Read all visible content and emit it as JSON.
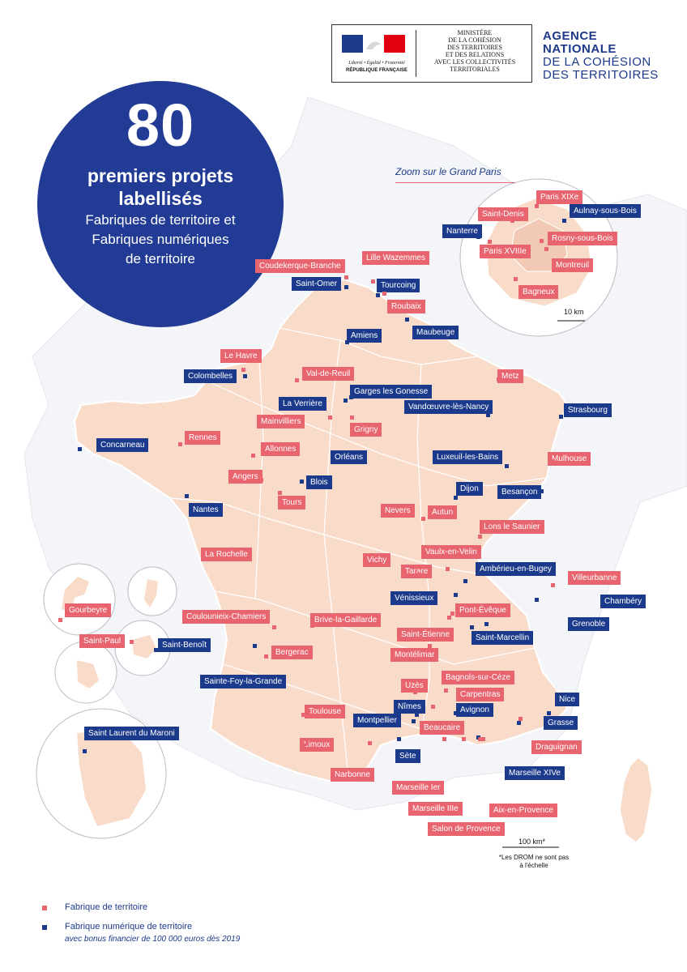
{
  "header": {
    "gov_motto": "Liberté • Égalité • Fraternité",
    "gov_name": "RÉPUBLIQUE FRANÇAISE",
    "ministry_lines": [
      "MINISTÈRE",
      "DE LA COHÉSION",
      "DES TERRITOIRES",
      "ET DES RELATIONS",
      "AVEC LES COLLECTIVITÉS",
      "TERRITORIALES"
    ],
    "agency_lines": [
      "AGENCE",
      "NATIONALE",
      "DE LA COHÉSION",
      "DES TERRITOIRES"
    ]
  },
  "headline": {
    "number": "80",
    "line1": "premiers projets",
    "line2": "labellisés",
    "line3": "Fabriques de territoire et",
    "line4": "Fabriques numériques",
    "line5": "de territoire"
  },
  "zoom": {
    "title": "Zoom sur le Grand Paris",
    "scale": "10 km"
  },
  "scale_main": "100 km*",
  "drom_note": "*Les DROM ne sont pas à l'échelle",
  "legend": {
    "red_label": "Fabrique de territoire",
    "blue_label": "Fabrique numérique de territoire",
    "blue_sub": "avec bonus financier de 100 000 euros dès 2019"
  },
  "colors": {
    "red": "#e8646e",
    "blue": "#1c3a8c",
    "land": "#f8dcc9",
    "circle": "#223b95"
  },
  "places": [
    {
      "name": "Coudekerque-Branche",
      "type": "red"
    },
    {
      "name": "Lille Wazemmes",
      "type": "red"
    },
    {
      "name": "Saint-Omer",
      "type": "blue"
    },
    {
      "name": "Tourcoing",
      "type": "blue"
    },
    {
      "name": "Roubaix",
      "type": "red"
    },
    {
      "name": "Maubeuge",
      "type": "blue"
    },
    {
      "name": "Amiens",
      "type": "blue"
    },
    {
      "name": "Le Havre",
      "type": "red"
    },
    {
      "name": "Colombelles",
      "type": "blue"
    },
    {
      "name": "Val-de-Reuil",
      "type": "red"
    },
    {
      "name": "Garges les Gonesse",
      "type": "blue"
    },
    {
      "name": "La Verrière",
      "type": "blue"
    },
    {
      "name": "Metz",
      "type": "red"
    },
    {
      "name": "Vandœuvre-lès-Nancy",
      "type": "blue"
    },
    {
      "name": "Strasbourg",
      "type": "blue"
    },
    {
      "name": "Mainvilliers",
      "type": "red"
    },
    {
      "name": "Grigny",
      "type": "red"
    },
    {
      "name": "Concarneau",
      "type": "blue"
    },
    {
      "name": "Rennes",
      "type": "red"
    },
    {
      "name": "Allonnes",
      "type": "red"
    },
    {
      "name": "Orléans",
      "type": "blue"
    },
    {
      "name": "Luxeuil-les-Bains",
      "type": "blue"
    },
    {
      "name": "Mulhouse",
      "type": "red"
    },
    {
      "name": "Angers",
      "type": "red"
    },
    {
      "name": "Blois",
      "type": "blue"
    },
    {
      "name": "Tours",
      "type": "red"
    },
    {
      "name": "Nantes",
      "type": "blue"
    },
    {
      "name": "Dijon",
      "type": "blue"
    },
    {
      "name": "Besançon",
      "type": "blue"
    },
    {
      "name": "Nevers",
      "type": "red"
    },
    {
      "name": "Autun",
      "type": "red"
    },
    {
      "name": "Lons le Saunier",
      "type": "red"
    },
    {
      "name": "La Rochelle",
      "type": "red"
    },
    {
      "name": "Vaulx-en-Velin",
      "type": "red"
    },
    {
      "name": "Vichy",
      "type": "red"
    },
    {
      "name": "Tarare",
      "type": "red"
    },
    {
      "name": "Ambérieu-en-Bugey",
      "type": "blue"
    },
    {
      "name": "Villeurbanne",
      "type": "red"
    },
    {
      "name": "Vénissieux",
      "type": "blue"
    },
    {
      "name": "Chambéry",
      "type": "blue"
    },
    {
      "name": "Pont-Évêque",
      "type": "red"
    },
    {
      "name": "Gourbeyre",
      "type": "red"
    },
    {
      "name": "Coulounieix-Chamiers",
      "type": "red"
    },
    {
      "name": "Brive-la-Gaillarde",
      "type": "red"
    },
    {
      "name": "Grenoble",
      "type": "blue"
    },
    {
      "name": "Saint-Étienne",
      "type": "red"
    },
    {
      "name": "Saint-Marcellin",
      "type": "blue"
    },
    {
      "name": "Saint-Paul",
      "type": "red"
    },
    {
      "name": "Saint-Benoît",
      "type": "blue"
    },
    {
      "name": "Bergerac",
      "type": "red"
    },
    {
      "name": "Montélimar",
      "type": "red"
    },
    {
      "name": "Sainte-Foy-la-Grande",
      "type": "blue"
    },
    {
      "name": "Bagnols-sur-Cèze",
      "type": "red"
    },
    {
      "name": "Uzès",
      "type": "red"
    },
    {
      "name": "Carpentras",
      "type": "red"
    },
    {
      "name": "Nice",
      "type": "blue"
    },
    {
      "name": "Nîmes",
      "type": "blue"
    },
    {
      "name": "Avignon",
      "type": "blue"
    },
    {
      "name": "Toulouse",
      "type": "red"
    },
    {
      "name": "Montpellier",
      "type": "blue"
    },
    {
      "name": "Beaucaire",
      "type": "red"
    },
    {
      "name": "Grasse",
      "type": "blue"
    },
    {
      "name": "Saint Laurent du Maroni",
      "type": "blue"
    },
    {
      "name": "Limoux",
      "type": "red"
    },
    {
      "name": "Draguignan",
      "type": "red"
    },
    {
      "name": "Sète",
      "type": "blue"
    },
    {
      "name": "Marseille XIVe",
      "type": "blue"
    },
    {
      "name": "Narbonne",
      "type": "red"
    },
    {
      "name": "Marseille Ier",
      "type": "red"
    },
    {
      "name": "Marseille IIIe",
      "type": "red"
    },
    {
      "name": "Aix-en-Provence",
      "type": "red"
    },
    {
      "name": "Salon de Provence",
      "type": "red"
    },
    {
      "name": "Paris XIXe",
      "type": "red"
    },
    {
      "name": "Saint-Denis",
      "type": "red"
    },
    {
      "name": "Aulnay-sous-Bois",
      "type": "blue"
    },
    {
      "name": "Nanterre",
      "type": "blue"
    },
    {
      "name": "Rosny-sous-Bois",
      "type": "red"
    },
    {
      "name": "Paris XVIIIe",
      "type": "red"
    },
    {
      "name": "Montreuil",
      "type": "red"
    },
    {
      "name": "Bagneux",
      "type": "red"
    }
  ]
}
